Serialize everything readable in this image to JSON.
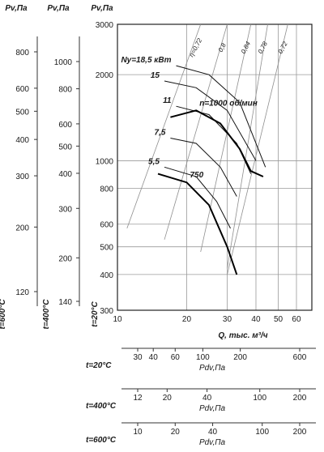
{
  "chart_data": {
    "type": "line",
    "xlabel": "Q, тыс. м³/ч",
    "x_ticks": [
      "10",
      "20",
      "30",
      "40",
      "50",
      "60"
    ],
    "y_ticks": [
      "300",
      "400",
      "500",
      "600",
      "800",
      "1000",
      "2000",
      "3000"
    ],
    "left_scales": [
      {
        "header": "Pv,Па",
        "temp_label": "t=600°C",
        "ticks": [
          "800",
          "600",
          "500",
          "400",
          "300",
          "200",
          "120"
        ]
      },
      {
        "header": "Pv,Па",
        "temp_label": "t=400°C",
        "ticks": [
          "1000",
          "800",
          "600",
          "500",
          "400",
          "300",
          "200",
          "140"
        ]
      },
      {
        "header": "Pv,Па",
        "temp_label": "t=20°C"
      }
    ],
    "bottom_scales": [
      {
        "temp_label": "t=20°C",
        "label": "Pdv,Па",
        "ticks": [
          "30",
          "40",
          "60",
          "100",
          "200",
          "600"
        ]
      },
      {
        "temp_label": "t=400°C",
        "label": "Pdv,Па",
        "ticks": [
          "12",
          "20",
          "40",
          "100",
          "200"
        ]
      },
      {
        "temp_label": "t=600°C",
        "label": "Pdv,Па",
        "ticks": [
          "10",
          "20",
          "40",
          "100",
          "200"
        ]
      }
    ],
    "speed_series": [
      {
        "name": "n=1000 об/мин",
        "points": [
          [
            17,
            1420
          ],
          [
            22,
            1500
          ],
          [
            28,
            1350
          ],
          [
            34,
            1100
          ],
          [
            38,
            920
          ],
          [
            43,
            880
          ]
        ]
      },
      {
        "name": "750",
        "points": [
          [
            15,
            900
          ],
          [
            20,
            840
          ],
          [
            25,
            700
          ],
          [
            30,
            500
          ],
          [
            33,
            400
          ]
        ]
      }
    ],
    "power_series": [
      {
        "name": "Nу=18,5 кВт",
        "points": [
          [
            18,
            2150
          ],
          [
            25,
            2000
          ],
          [
            34,
            1600
          ],
          [
            44,
            950
          ]
        ]
      },
      {
        "name": "15",
        "points": [
          [
            16,
            1900
          ],
          [
            22,
            1800
          ],
          [
            30,
            1500
          ],
          [
            40,
            1000
          ]
        ]
      },
      {
        "name": "11",
        "points": [
          [
            18,
            1550
          ],
          [
            25,
            1450
          ],
          [
            33,
            1150
          ],
          [
            38,
            900
          ]
        ]
      },
      {
        "name": "7,5",
        "points": [
          [
            17,
            1200
          ],
          [
            22,
            1150
          ],
          [
            28,
            950
          ],
          [
            33,
            750
          ]
        ]
      },
      {
        "name": "5,5",
        "points": [
          [
            16,
            950
          ],
          [
            22,
            880
          ],
          [
            27,
            720
          ],
          [
            31,
            580
          ]
        ]
      }
    ],
    "efficiency_series": [
      {
        "name": "η=0,72",
        "points": [
          [
            11,
            580
          ],
          [
            23,
            3000
          ]
        ]
      },
      {
        "name": "0,8",
        "points": [
          [
            16,
            530
          ],
          [
            30,
            3000
          ]
        ]
      },
      {
        "name": "0,84",
        "points": [
          [
            23,
            480
          ],
          [
            38,
            3000
          ]
        ]
      },
      {
        "name": "0,78",
        "points": [
          [
            30,
            420
          ],
          [
            45,
            3000
          ]
        ]
      },
      {
        "name": "0,72",
        "points": [
          [
            30,
            400
          ],
          [
            55,
            3000
          ]
        ]
      }
    ]
  }
}
